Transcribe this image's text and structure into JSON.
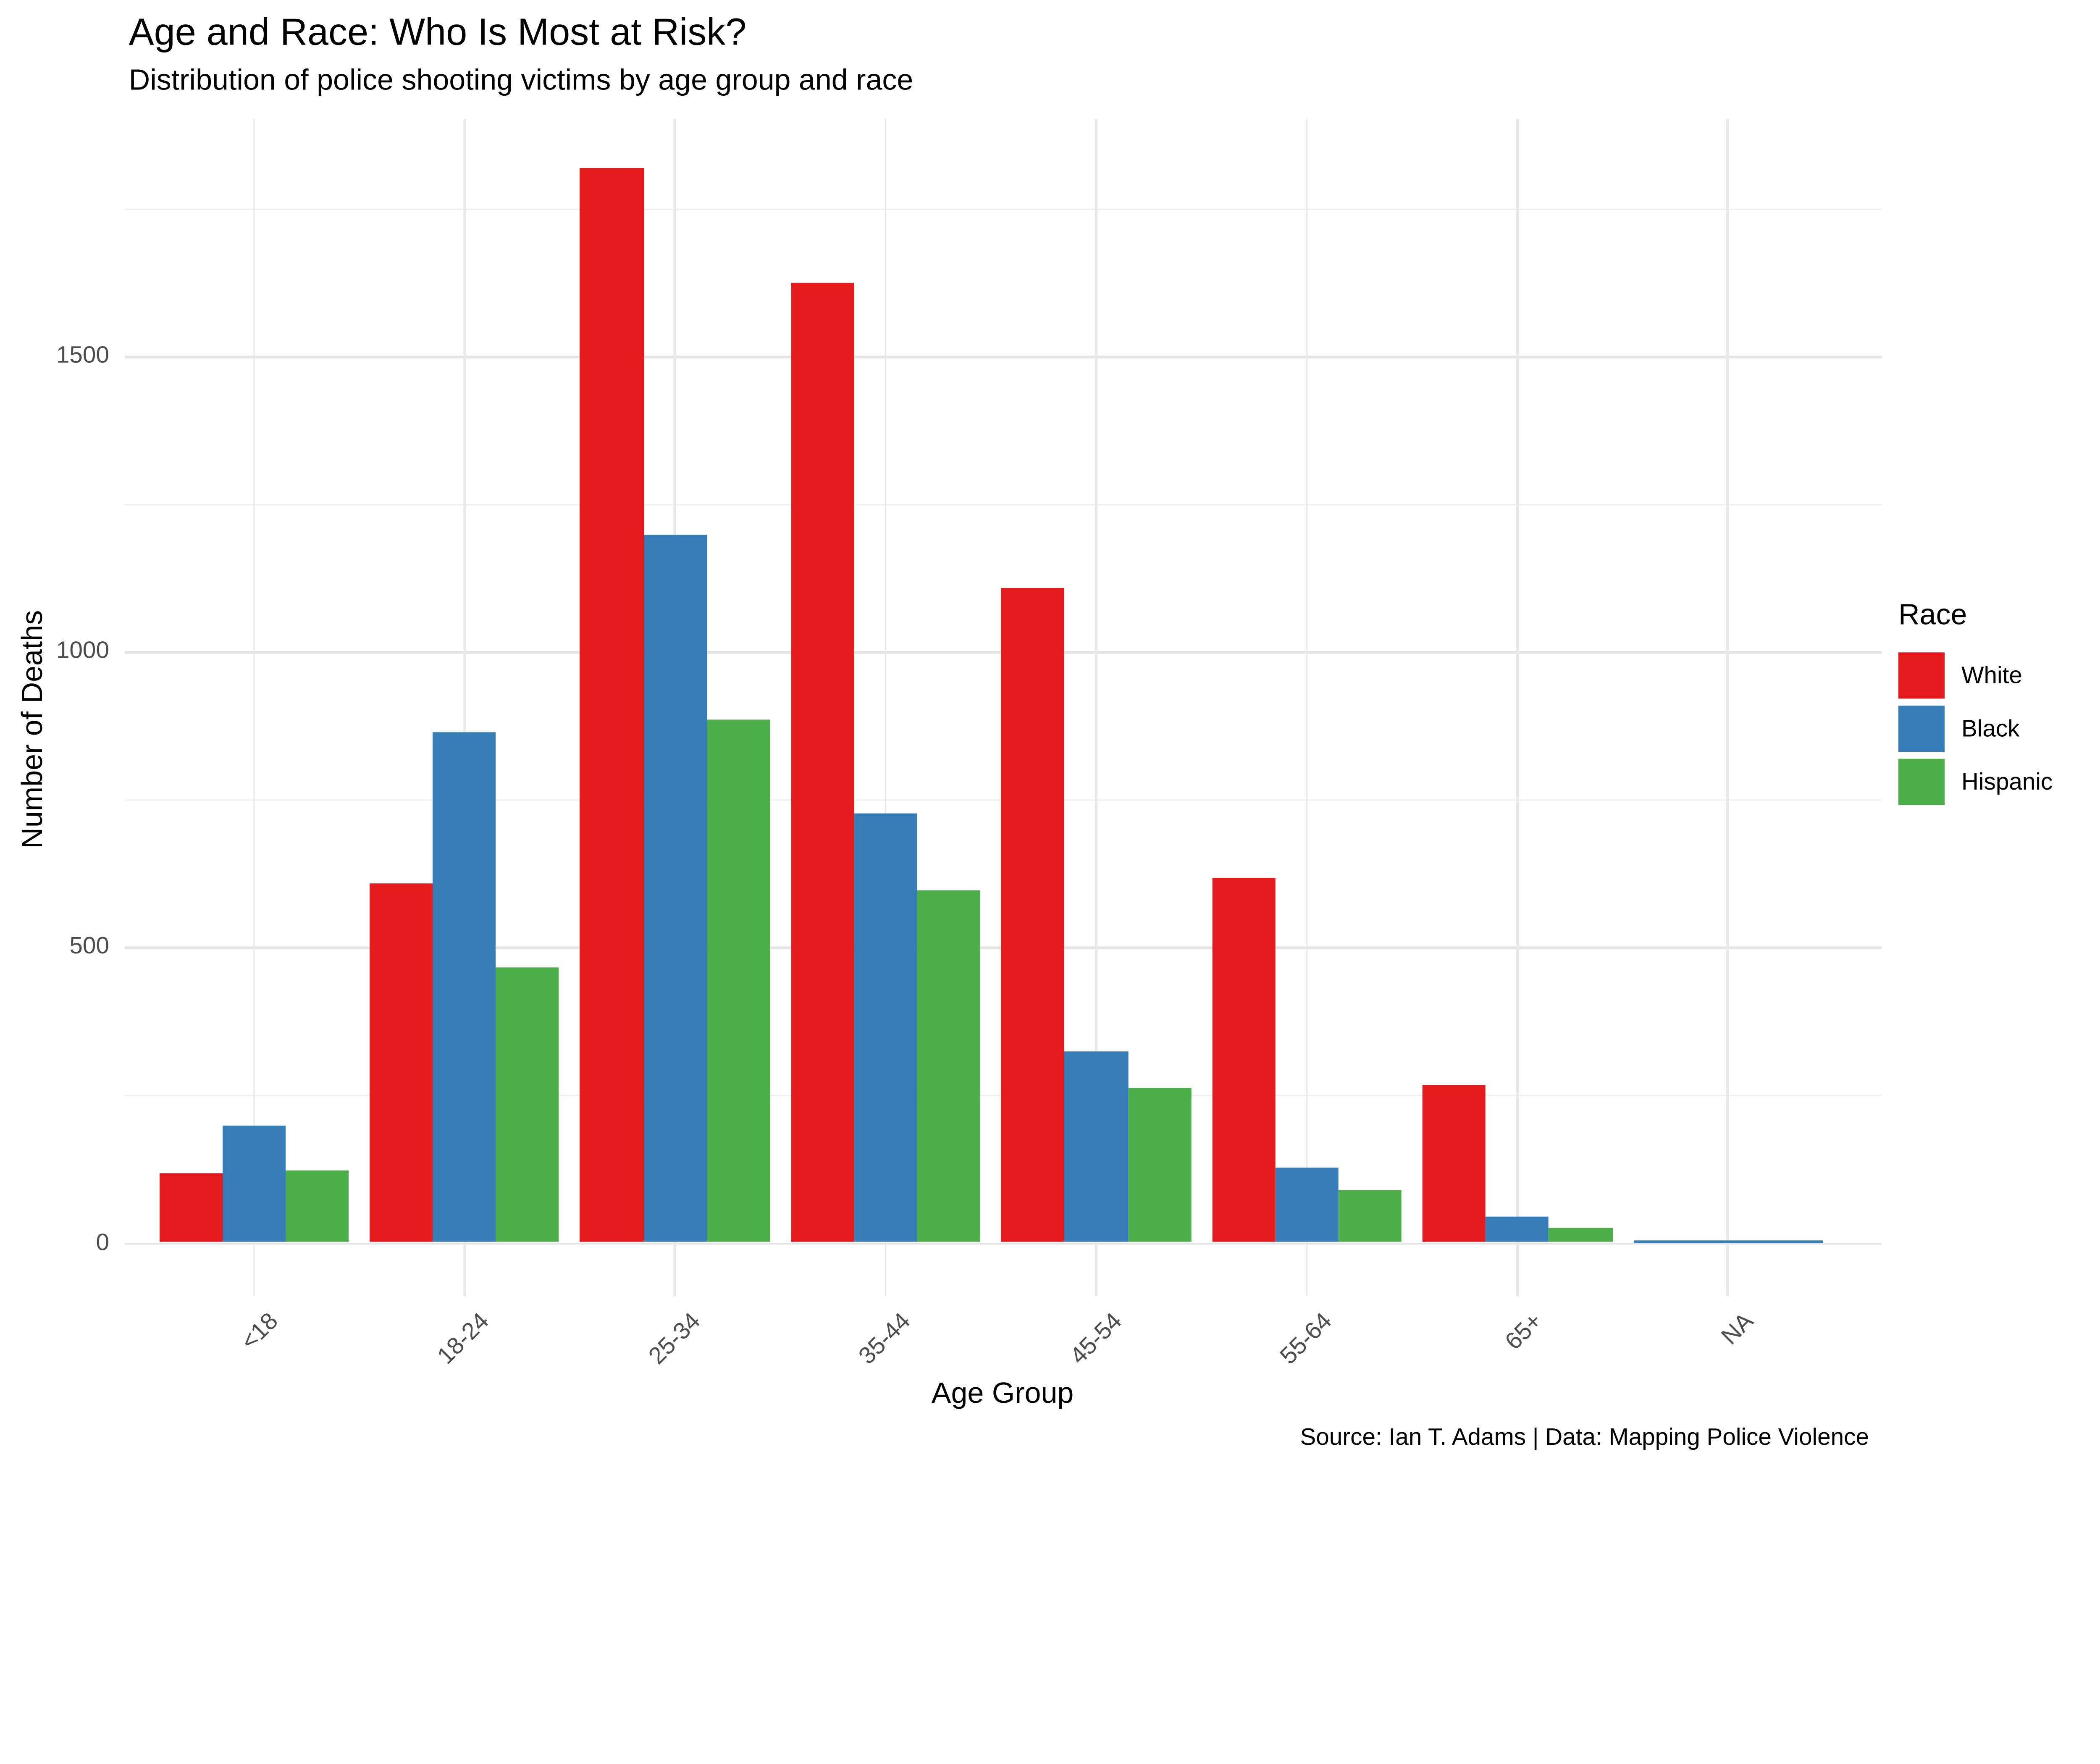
{
  "title": "Age and Race: Who Is Most at Risk?",
  "subtitle": "Distribution of police shooting victims by age group and race",
  "caption": "Source: Ian T. Adams | Data: Mapping Police Violence",
  "x_axis": {
    "label": "Age Group"
  },
  "y_axis": {
    "label": "Number of Deaths",
    "ticks": [
      0,
      500,
      1000,
      1500
    ]
  },
  "legend": {
    "title": "Race",
    "position": "right",
    "items": [
      {
        "label": "White",
        "color": "#E41A1C"
      },
      {
        "label": "Black",
        "color": "#377EB8"
      },
      {
        "label": "Hispanic",
        "color": "#4DAF4A"
      }
    ]
  },
  "colors": {
    "background": "#FFFFFF",
    "grid_major": "#E4E4E4",
    "grid_minor": "#F0F0F0",
    "axis_text": "#4D4D4D",
    "text": "#000000"
  },
  "chart_data": {
    "type": "bar",
    "mode": "grouped",
    "title": "Age and Race: Who Is Most at Risk?",
    "subtitle": "Distribution of police shooting victims by age group and race",
    "xlabel": "Age Group",
    "ylabel": "Number of Deaths",
    "categories": [
      "<18",
      "18-24",
      "25-34",
      "35-44",
      "45-54",
      "55-64",
      "65+",
      "NA"
    ],
    "series": [
      {
        "name": "White",
        "color": "#E41A1C",
        "values": [
          118,
          607,
          1818,
          1624,
          1107,
          617,
          267,
          null
        ]
      },
      {
        "name": "Black",
        "color": "#377EB8",
        "values": [
          197,
          863,
          1198,
          727,
          324,
          127,
          43,
          3
        ]
      },
      {
        "name": "Hispanic",
        "color": "#4DAF4A",
        "values": [
          122,
          466,
          886,
          596,
          262,
          90,
          25,
          null
        ]
      }
    ],
    "ylim": [
      0,
      1900
    ],
    "gridlines": {
      "major": [
        0,
        500,
        1000,
        1500
      ],
      "minor": [
        250,
        750,
        1250,
        1750
      ]
    },
    "grid": true,
    "legend_position": "right",
    "note": "NA category shows a single full-width Black bar (~3); no White/Hispanic bars"
  }
}
